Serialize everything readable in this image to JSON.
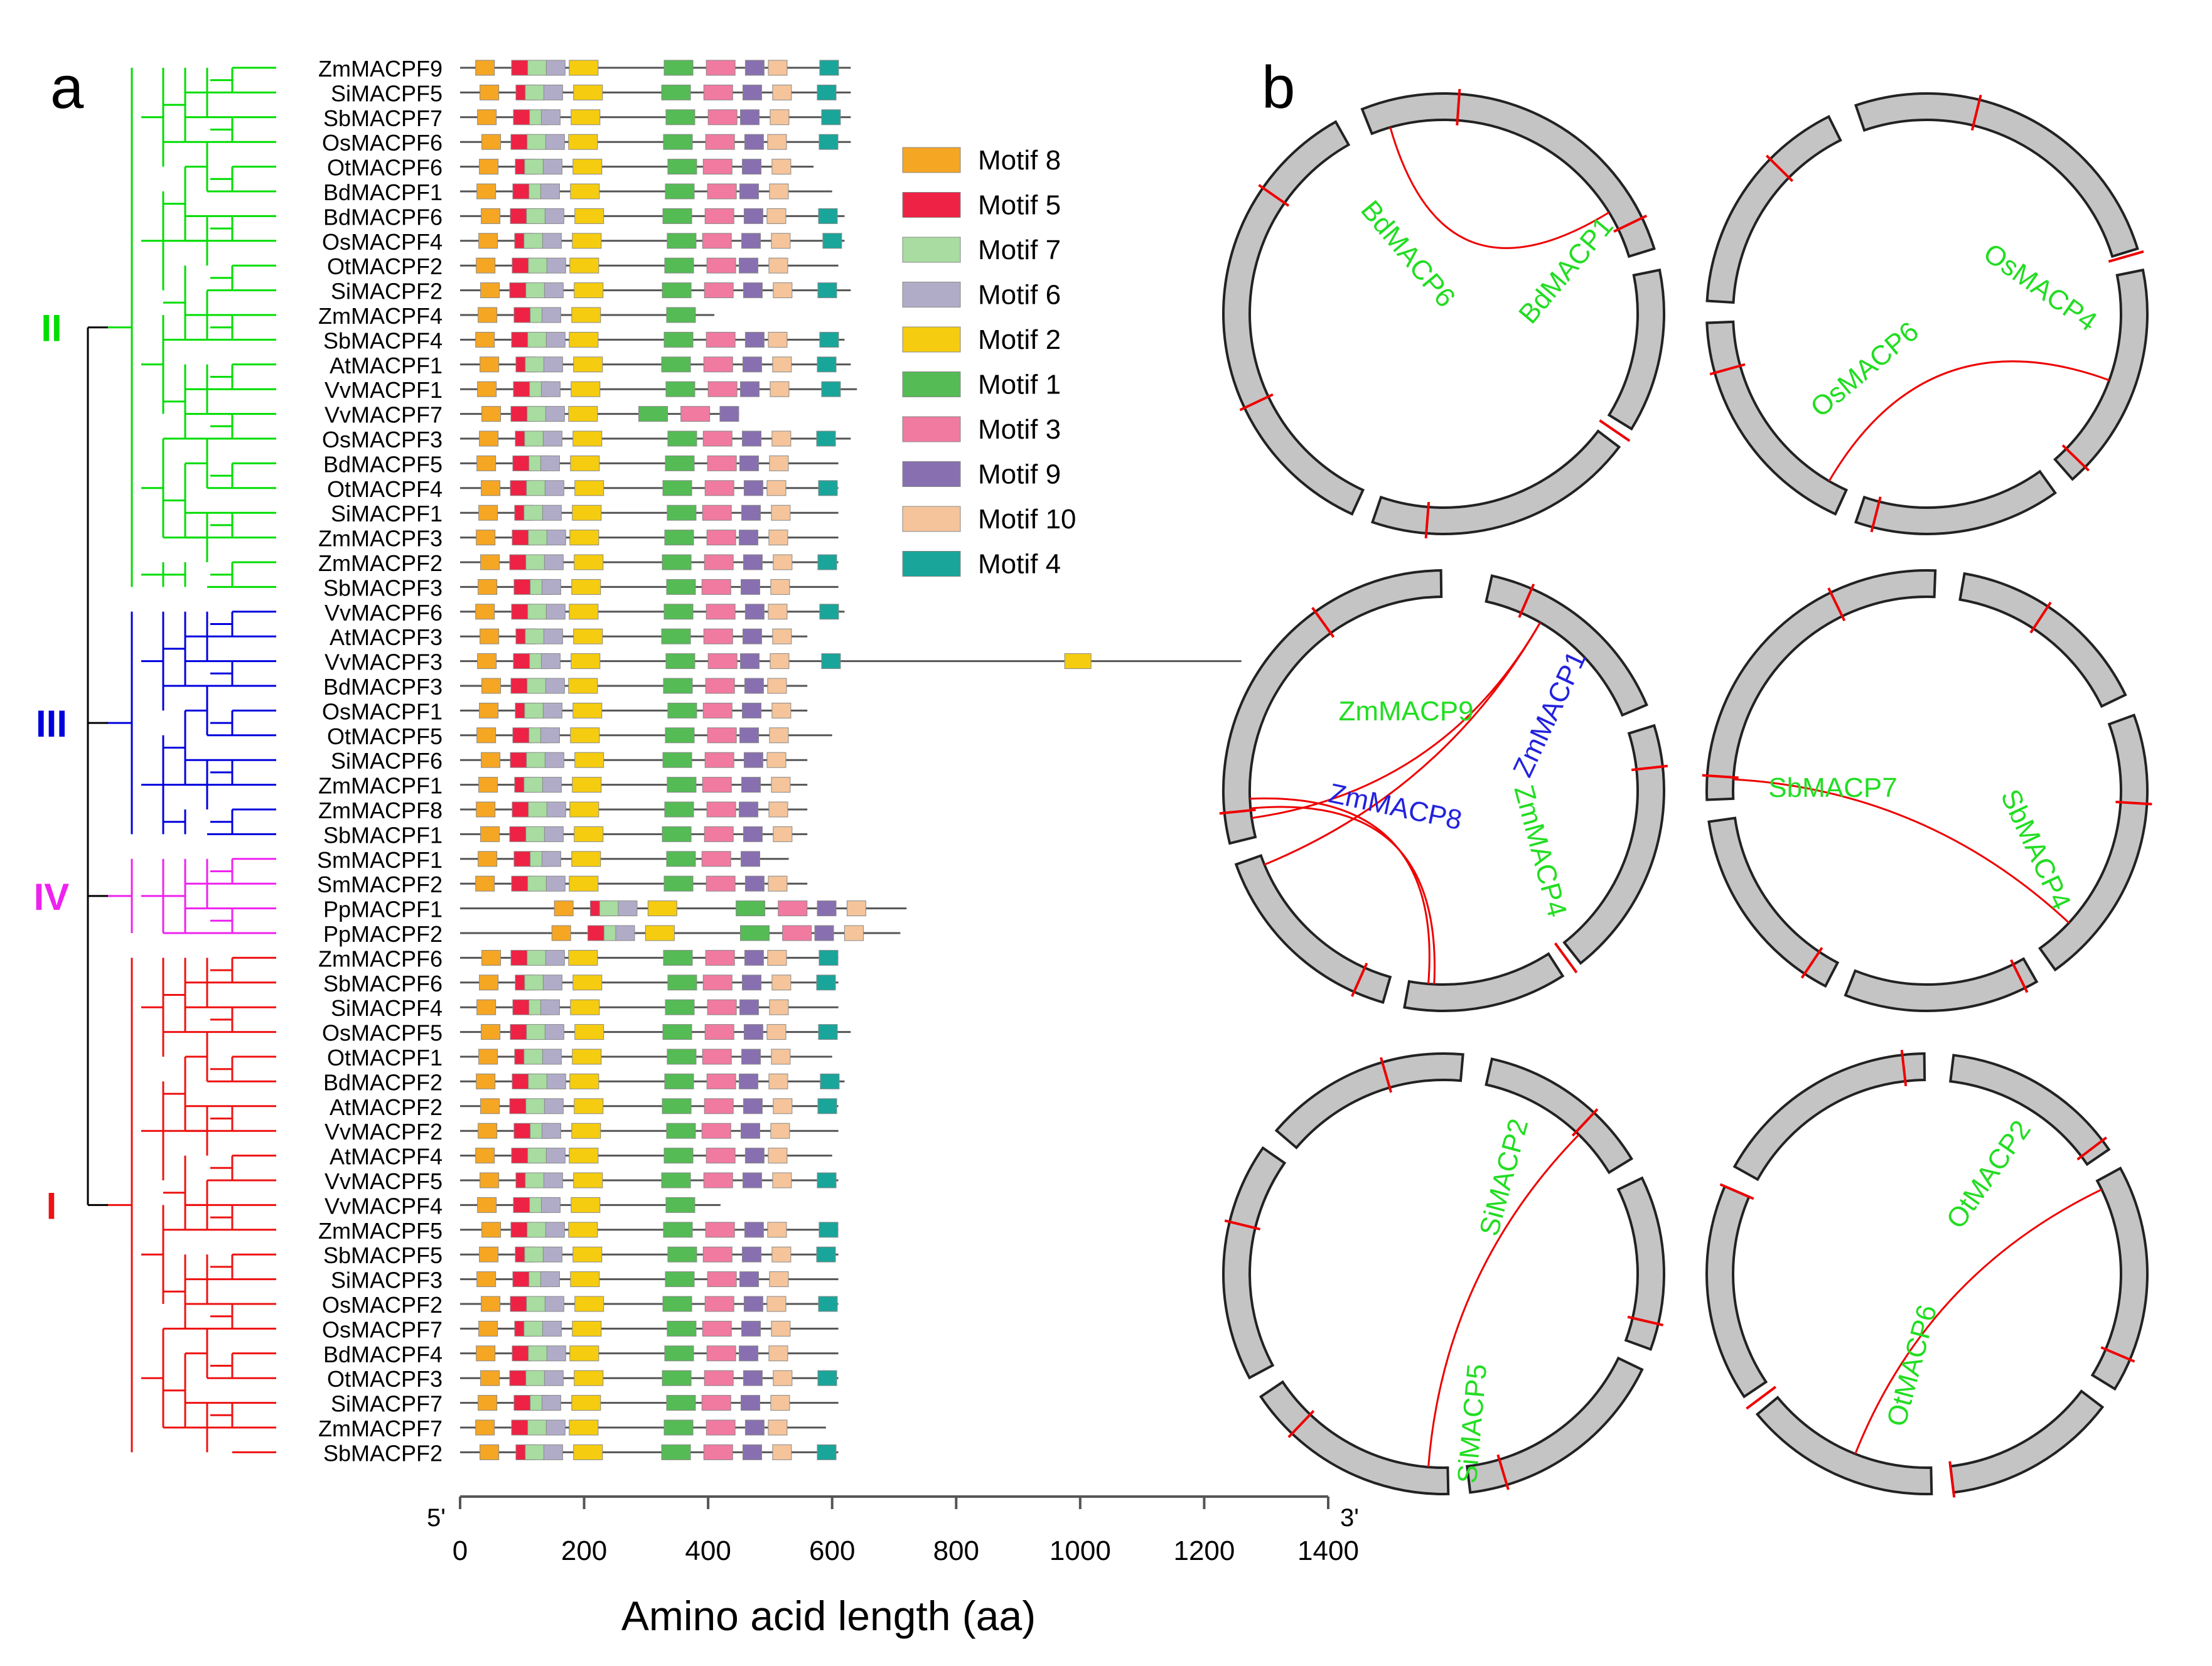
{
  "panel_a": {
    "label": "a",
    "colors": {
      "II": "#00dd00",
      "III": "#0000dd",
      "IV": "#ee22ee",
      "I": "#ee1111"
    },
    "clades": [
      {
        "name": "II",
        "color": "#00dd00"
      },
      {
        "name": "III",
        "color": "#0000dd"
      },
      {
        "name": "IV",
        "color": "#ee22ee"
      },
      {
        "name": "I",
        "color": "#ee1111"
      }
    ],
    "genes": [
      {
        "name": "ZmMACPF9",
        "clade": "II",
        "length": 630
      },
      {
        "name": "SiMACPF5",
        "clade": "II",
        "length": 630
      },
      {
        "name": "SbMACPF7",
        "clade": "II",
        "length": 630
      },
      {
        "name": "OsMACPF6",
        "clade": "II",
        "length": 630
      },
      {
        "name": "OtMACPF6",
        "clade": "II",
        "length": 570
      },
      {
        "name": "BdMACPF1",
        "clade": "II",
        "length": 600
      },
      {
        "name": "BdMACPF6",
        "clade": "II",
        "length": 620
      },
      {
        "name": "OsMACPF4",
        "clade": "II",
        "length": 620
      },
      {
        "name": "OtMACPF2",
        "clade": "II",
        "length": 610
      },
      {
        "name": "SiMACPF2",
        "clade": "II",
        "length": 630
      },
      {
        "name": "ZmMACPF4",
        "clade": "II",
        "length": 410
      },
      {
        "name": "SbMACPF4",
        "clade": "II",
        "length": 620
      },
      {
        "name": "AtMACPF1",
        "clade": "II",
        "length": 630
      },
      {
        "name": "VvMACPF1",
        "clade": "II",
        "length": 640
      },
      {
        "name": "VvMACPF7",
        "clade": "II",
        "length": 450
      },
      {
        "name": "OsMACPF3",
        "clade": "II",
        "length": 630
      },
      {
        "name": "BdMACPF5",
        "clade": "II",
        "length": 610
      },
      {
        "name": "OtMACPF4",
        "clade": "II",
        "length": 610
      },
      {
        "name": "SiMACPF1",
        "clade": "II",
        "length": 610
      },
      {
        "name": "ZmMACPF3",
        "clade": "II",
        "length": 610
      },
      {
        "name": "ZmMACPF2",
        "clade": "II",
        "length": 610
      },
      {
        "name": "SbMACPF3",
        "clade": "II",
        "length": 610
      },
      {
        "name": "VvMACPF6",
        "clade": "III",
        "length": 620
      },
      {
        "name": "AtMACPF3",
        "clade": "III",
        "length": 560
      },
      {
        "name": "VvMACPF3",
        "clade": "III",
        "length": 1260
      },
      {
        "name": "BdMACPF3",
        "clade": "III",
        "length": 560
      },
      {
        "name": "OsMACPF1",
        "clade": "III",
        "length": 560
      },
      {
        "name": "OtMACPF5",
        "clade": "III",
        "length": 600
      },
      {
        "name": "SiMACPF6",
        "clade": "III",
        "length": 560
      },
      {
        "name": "ZmMACPF1",
        "clade": "III",
        "length": 560
      },
      {
        "name": "ZmMACPF8",
        "clade": "III",
        "length": 560
      },
      {
        "name": "SbMACPF1",
        "clade": "III",
        "length": 560
      },
      {
        "name": "SmMACPF1",
        "clade": "IV",
        "length": 530
      },
      {
        "name": "SmMACPF2",
        "clade": "IV",
        "length": 560
      },
      {
        "name": "PpMACPF1",
        "clade": "IV",
        "length": 720
      },
      {
        "name": "PpMACPF2",
        "clade": "IV",
        "length": 710
      },
      {
        "name": "ZmMACPF6",
        "clade": "I",
        "length": 610
      },
      {
        "name": "SbMACPF6",
        "clade": "I",
        "length": 610
      },
      {
        "name": "SiMACPF4",
        "clade": "I",
        "length": 610
      },
      {
        "name": "OsMACPF5",
        "clade": "I",
        "length": 630
      },
      {
        "name": "OtMACPF1",
        "clade": "I",
        "length": 600
      },
      {
        "name": "BdMACPF2",
        "clade": "I",
        "length": 620
      },
      {
        "name": "AtMACPF2",
        "clade": "I",
        "length": 610
      },
      {
        "name": "VvMACPF2",
        "clade": "I",
        "length": 610
      },
      {
        "name": "AtMACPF4",
        "clade": "I",
        "length": 600
      },
      {
        "name": "VvMACPF5",
        "clade": "I",
        "length": 610
      },
      {
        "name": "VvMACPF4",
        "clade": "I",
        "length": 420
      },
      {
        "name": "ZmMACPF5",
        "clade": "I",
        "length": 610
      },
      {
        "name": "SbMACPF5",
        "clade": "I",
        "length": 610
      },
      {
        "name": "SiMACPF3",
        "clade": "I",
        "length": 610
      },
      {
        "name": "OsMACPF2",
        "clade": "I",
        "length": 610
      },
      {
        "name": "OsMACPF7",
        "clade": "I",
        "length": 610
      },
      {
        "name": "BdMACPF4",
        "clade": "I",
        "length": 610
      },
      {
        "name": "OtMACPF3",
        "clade": "I",
        "length": 610
      },
      {
        "name": "SiMACPF7",
        "clade": "I",
        "length": 610
      },
      {
        "name": "ZmMACPF7",
        "clade": "I",
        "length": 590
      },
      {
        "name": "SbMACPF2",
        "clade": "I",
        "length": 610
      }
    ],
    "motifs": [
      {
        "name": "Motif 8",
        "color": "#f5a623",
        "pos": 30
      },
      {
        "name": "Motif 5",
        "color": "#ee2244",
        "pos": 85
      },
      {
        "name": "Motif 7",
        "color": "#a8dca0",
        "pos": 108
      },
      {
        "name": "Motif 6",
        "color": "#b0acc8",
        "pos": 135
      },
      {
        "name": "Motif 2",
        "color": "#f5cc10",
        "pos": 180
      },
      {
        "name": "Motif 1",
        "color": "#55bb55",
        "pos": 330
      },
      {
        "name": "Motif 3",
        "color": "#f07aa0",
        "pos": 395
      },
      {
        "name": "Motif 9",
        "color": "#8870b0",
        "pos": 455
      },
      {
        "name": "Motif 10",
        "color": "#f5c49a",
        "pos": 500
      },
      {
        "name": "Motif 4",
        "color": "#1aa59a",
        "pos": 580
      }
    ],
    "axis": {
      "ticks": [
        "0",
        "200",
        "400",
        "600",
        "800",
        "1000",
        "1200",
        "1400"
      ],
      "max": 1400,
      "left_end": "5'",
      "right_end": "3'",
      "title": "Amino acid length (aa)"
    }
  },
  "panel_b": {
    "label": "b",
    "circos": [
      {
        "id": "bd",
        "links": [
          {
            "label": "BdMACP6",
            "color": "#22dd22"
          },
          {
            "label": "BdMACP1",
            "color": "#22dd22"
          }
        ]
      },
      {
        "id": "os",
        "links": [
          {
            "label": "OsMACP6",
            "color": "#22dd22"
          },
          {
            "label": "OsMACP4",
            "color": "#22dd22"
          }
        ]
      },
      {
        "id": "zm",
        "links": [
          {
            "label": "ZmMACP9",
            "color": "#22dd22"
          },
          {
            "label": "ZmMACP1",
            "color": "#2222dd"
          },
          {
            "label": "ZmMACP8",
            "color": "#2222dd"
          },
          {
            "label": "ZmMACP4",
            "color": "#22dd22"
          }
        ]
      },
      {
        "id": "sb",
        "links": [
          {
            "label": "SbMACP7",
            "color": "#22dd22"
          },
          {
            "label": "SbMACP4",
            "color": "#22dd22"
          }
        ]
      },
      {
        "id": "si",
        "links": [
          {
            "label": "SiMACP2",
            "color": "#22dd22"
          },
          {
            "label": "SiMACP5",
            "color": "#22dd22"
          }
        ]
      },
      {
        "id": "ot",
        "links": [
          {
            "label": "OtMACP2",
            "color": "#22dd22"
          },
          {
            "label": "OtMACP6",
            "color": "#22dd22"
          }
        ]
      }
    ]
  }
}
